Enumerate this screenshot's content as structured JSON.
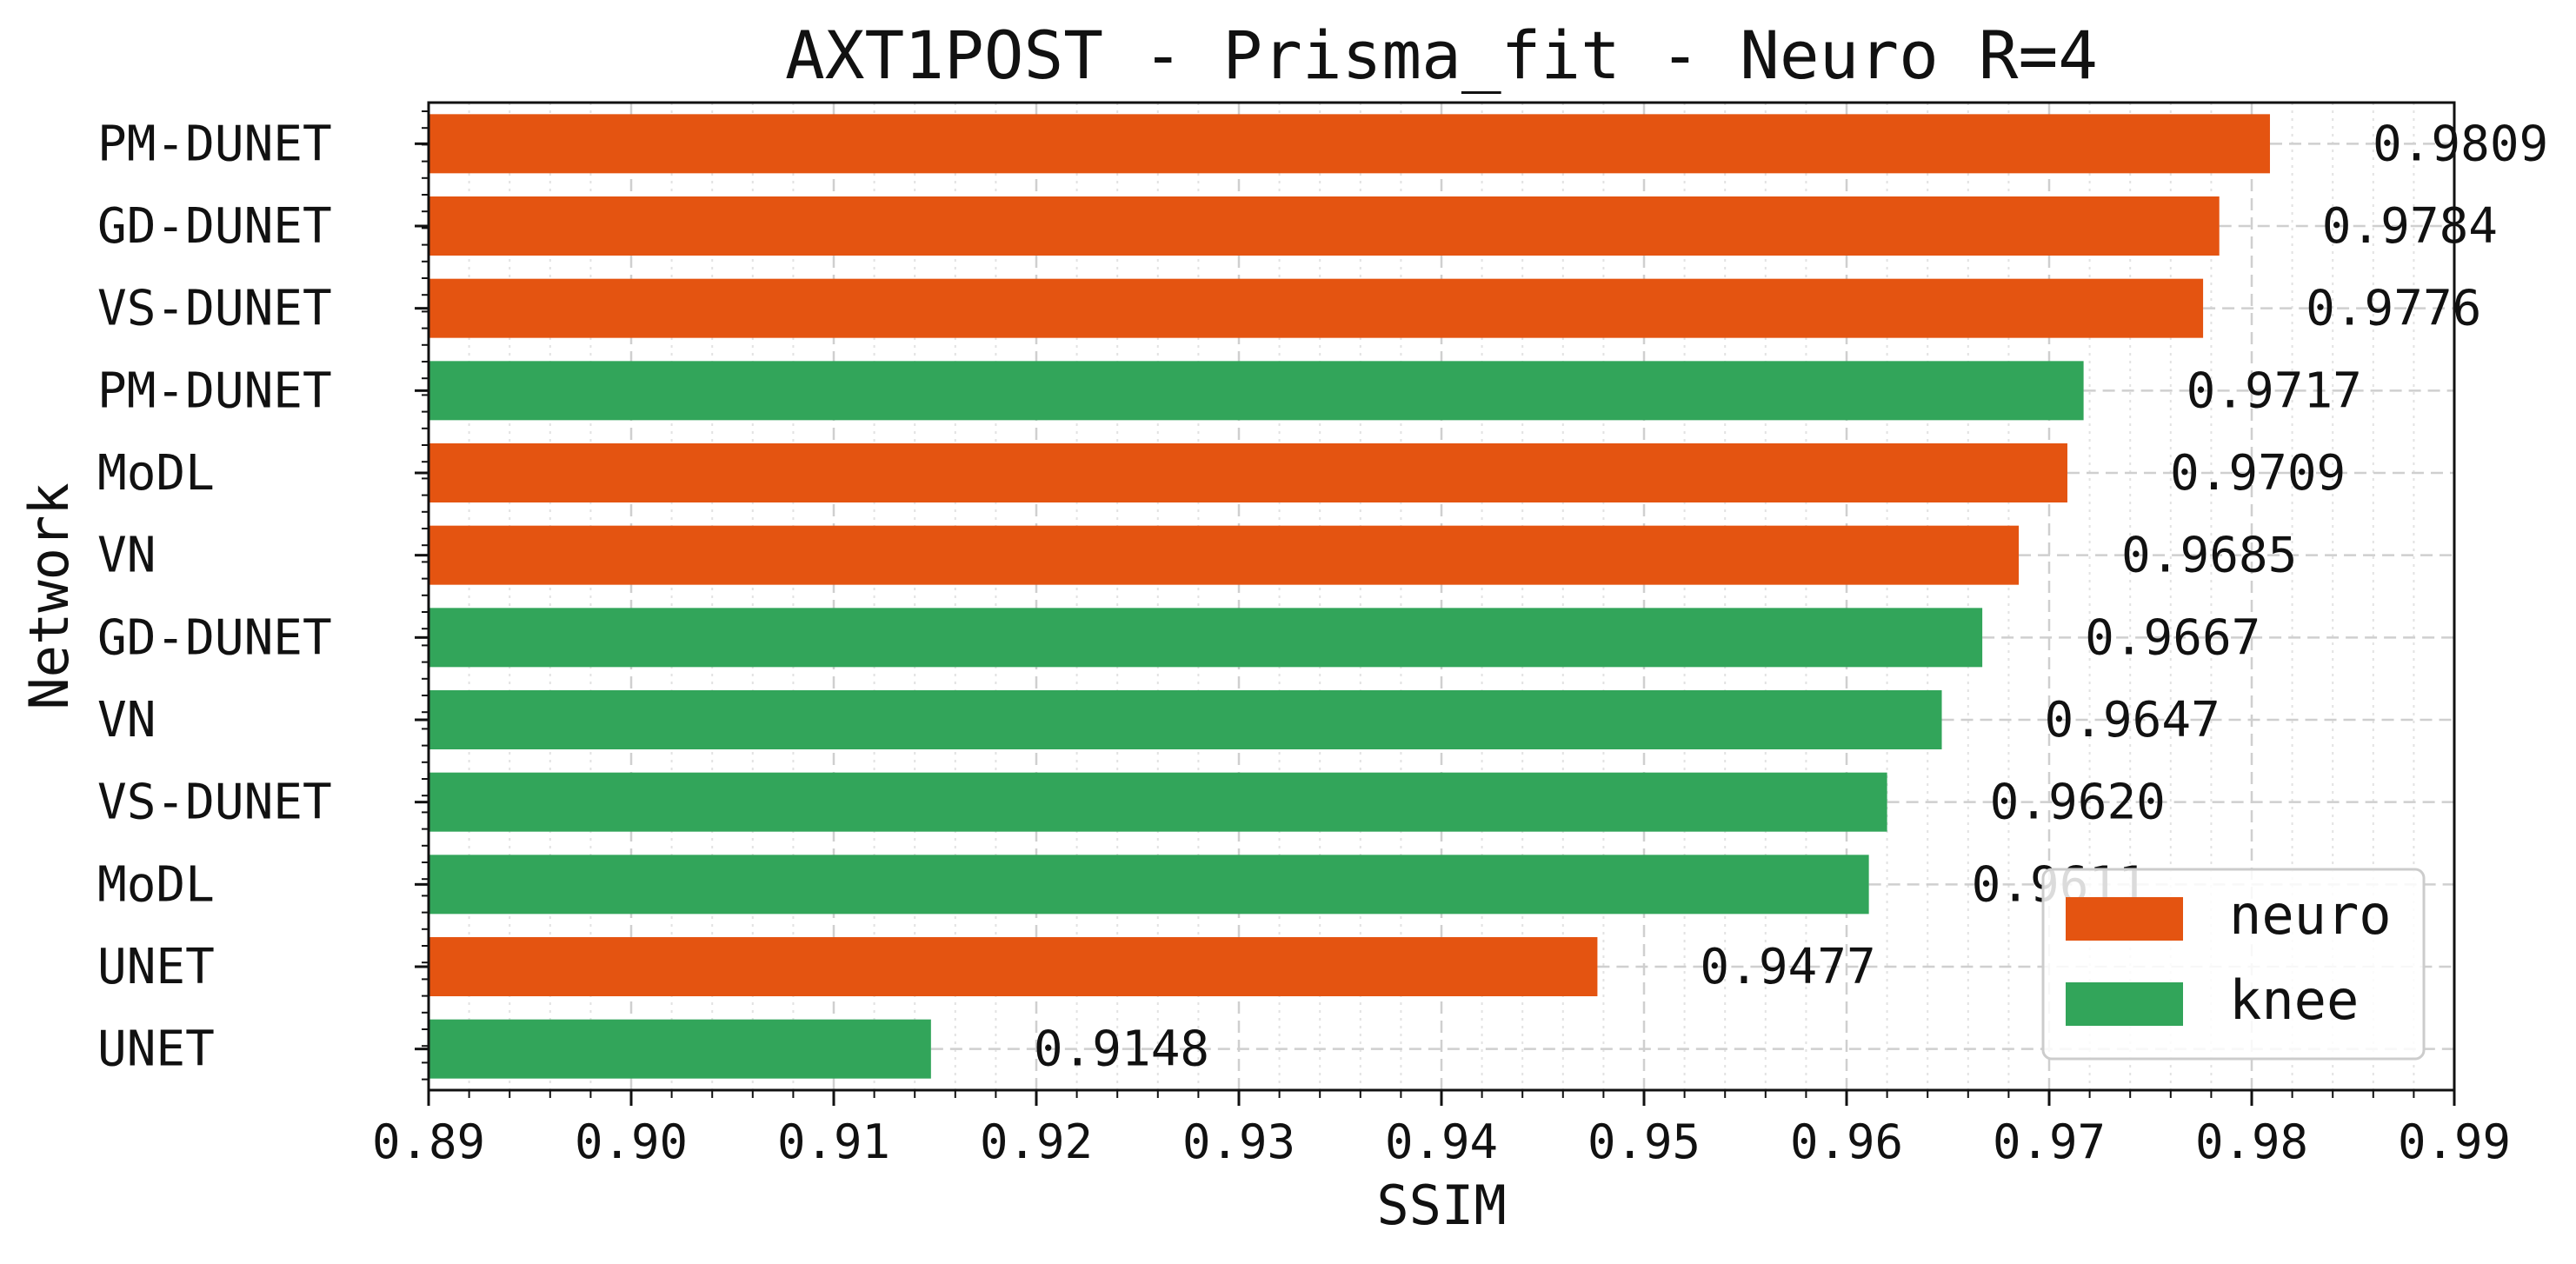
{
  "chart_data": {
    "type": "bar",
    "orientation": "horizontal",
    "title": "AXT1POST - Prisma_fit - Neuro R=4",
    "xlabel": "SSIM",
    "ylabel": "Network",
    "xlim": [
      0.89,
      0.99
    ],
    "xticks": [
      "0.89",
      "0.90",
      "0.91",
      "0.92",
      "0.93",
      "0.94",
      "0.95",
      "0.96",
      "0.97",
      "0.98",
      "0.99"
    ],
    "grid": true,
    "legend_position": "lower-right",
    "legend": [
      {
        "name": "neuro",
        "color": "#e45411"
      },
      {
        "name": "knee",
        "color": "#32a55a"
      }
    ],
    "bars": [
      {
        "category": "PM-DUNET",
        "value": 0.9809,
        "label": "0.9809",
        "group": "neuro"
      },
      {
        "category": "GD-DUNET",
        "value": 0.9784,
        "label": "0.9784",
        "group": "neuro"
      },
      {
        "category": "VS-DUNET",
        "value": 0.9776,
        "label": "0.9776",
        "group": "neuro"
      },
      {
        "category": "PM-DUNET",
        "value": 0.9717,
        "label": "0.9717",
        "group": "knee"
      },
      {
        "category": "MoDL",
        "value": 0.9709,
        "label": "0.9709",
        "group": "neuro"
      },
      {
        "category": "VN",
        "value": 0.9685,
        "label": "0.9685",
        "group": "neuro"
      },
      {
        "category": "GD-DUNET",
        "value": 0.9667,
        "label": "0.9667",
        "group": "knee"
      },
      {
        "category": "VN",
        "value": 0.9647,
        "label": "0.9647",
        "group": "knee"
      },
      {
        "category": "VS-DUNET",
        "value": 0.962,
        "label": "0.9620",
        "group": "knee"
      },
      {
        "category": "MoDL",
        "value": 0.9611,
        "label": "0.9611",
        "group": "knee"
      },
      {
        "category": "UNET",
        "value": 0.9477,
        "label": "0.9477",
        "group": "neuro"
      },
      {
        "category": "UNET",
        "value": 0.9148,
        "label": "0.9148",
        "group": "knee"
      }
    ]
  }
}
